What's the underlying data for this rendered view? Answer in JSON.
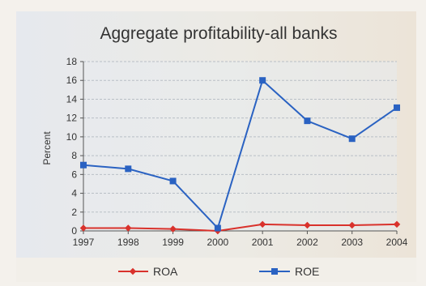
{
  "chart_data": {
    "type": "line",
    "title": "Aggregate profitability-all banks",
    "xlabel": "",
    "ylabel": "Percent",
    "x": [
      "1997",
      "1998",
      "1999",
      "2000",
      "2001",
      "2002",
      "2003",
      "2004"
    ],
    "yticks": [
      "0",
      "2",
      "4",
      "6",
      "8",
      "10",
      "12",
      "14",
      "16",
      "18"
    ],
    "ylim": [
      0,
      18
    ],
    "grid": true,
    "legend_position": "bottom",
    "series": [
      {
        "name": "ROA",
        "values": [
          0.3,
          0.3,
          0.2,
          0.0,
          0.7,
          0.6,
          0.6,
          0.7
        ],
        "color": "#d9322c",
        "marker": "diamond"
      },
      {
        "name": "ROE",
        "values": [
          7.0,
          6.6,
          5.3,
          0.3,
          16.0,
          11.7,
          9.8,
          13.1
        ],
        "color": "#2a62c2",
        "marker": "square"
      }
    ]
  },
  "colors": {
    "plot_background": "#e7ebef",
    "gridline": "#b9bfc6",
    "axis": "#555555"
  }
}
